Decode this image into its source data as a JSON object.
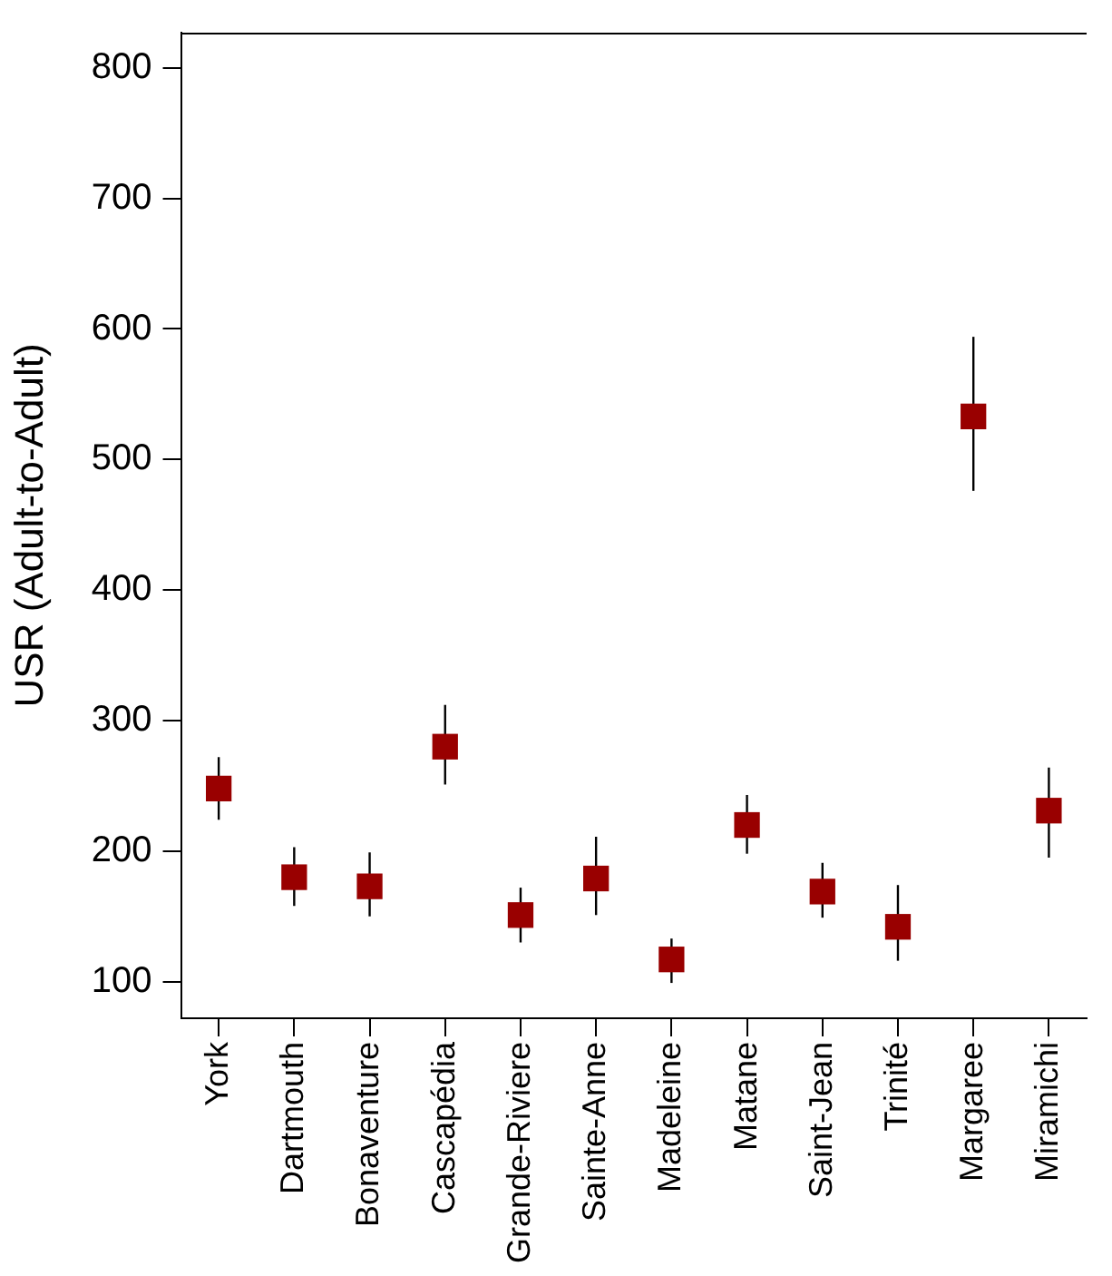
{
  "chart_data": {
    "type": "scatter",
    "ylabel": "USR (Adult-to-Adult)",
    "categories": [
      "York",
      "Dartmouth",
      "Bonaventure",
      "Cascapédia",
      "Grande-Riviere",
      "Sainte-Anne",
      "Madeleine",
      "Matane",
      "Saint-Jean",
      "Trinité",
      "Margaree",
      "Miramichi"
    ],
    "values": [
      248,
      180,
      173,
      280,
      151,
      179,
      117,
      220,
      169,
      142,
      533,
      231
    ],
    "errors": [
      [
        224,
        272
      ],
      [
        158,
        203
      ],
      [
        150,
        199
      ],
      [
        251,
        312
      ],
      [
        130,
        172
      ],
      [
        151,
        211
      ],
      [
        99,
        133
      ],
      [
        198,
        243
      ],
      [
        149,
        191
      ],
      [
        116,
        174
      ],
      [
        476,
        594
      ],
      [
        195,
        264
      ]
    ],
    "color": "#990000",
    "marker": "square",
    "grid": false,
    "legend": false,
    "ylim": [
      72,
      827
    ],
    "yticks": [
      100,
      200,
      300,
      400,
      500,
      600,
      700,
      800
    ]
  }
}
